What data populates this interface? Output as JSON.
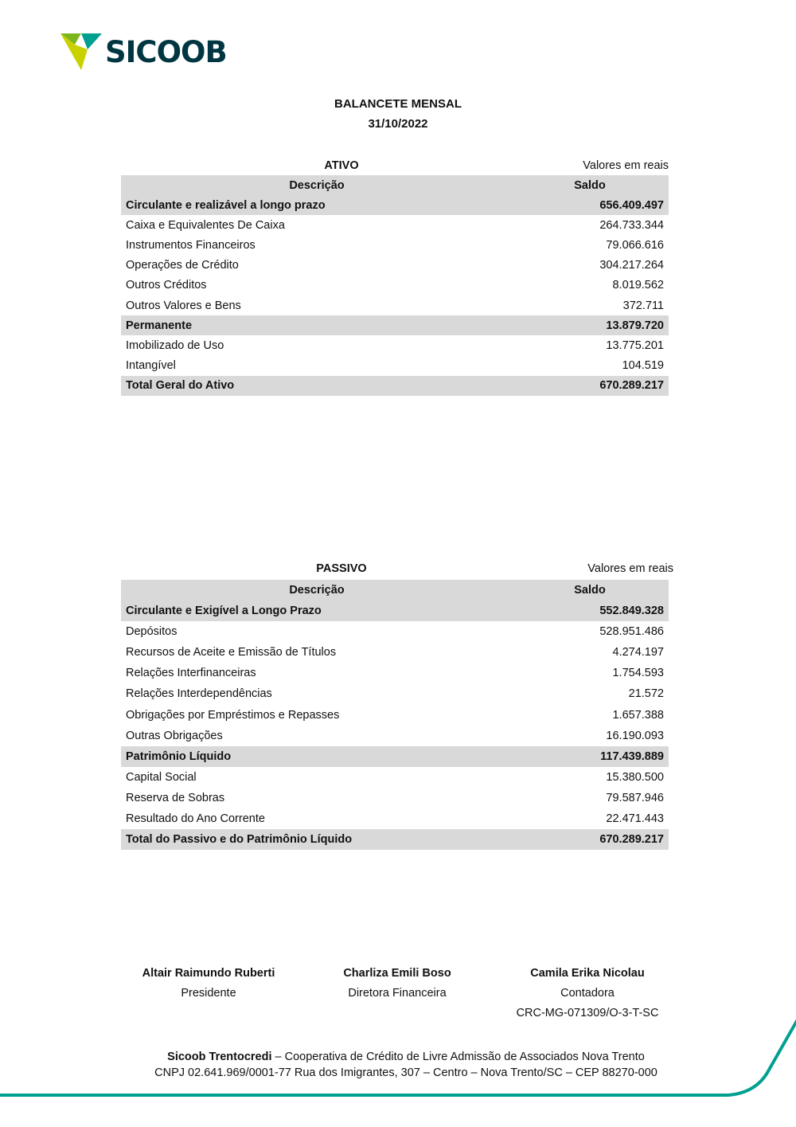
{
  "brand": {
    "name": "SICOOB",
    "colors": {
      "dark": "#003641",
      "teal": "#00a091",
      "green": "#7db61c",
      "lime": "#c9d200"
    }
  },
  "header": {
    "title": "BALANCETE MENSAL",
    "date": "31/10/2022"
  },
  "ativo": {
    "title": "ATIVO",
    "units": "Valores em reais",
    "col_desc": "Descrição",
    "col_saldo": "Saldo",
    "rows": [
      {
        "d": "Circulante e realizável a longo prazo",
        "s": "656.409.497",
        "group": true
      },
      {
        "d": "Caixa e Equivalentes De Caixa",
        "s": "264.733.344"
      },
      {
        "d": "Instrumentos Financeiros",
        "s": "79.066.616"
      },
      {
        "d": "Operações de Crédito",
        "s": "304.217.264"
      },
      {
        "d": "Outros Créditos",
        "s": "8.019.562"
      },
      {
        "d": "Outros Valores e Bens",
        "s": "372.711"
      },
      {
        "d": "Permanente",
        "s": "13.879.720",
        "group": true
      },
      {
        "d": "Imobilizado de Uso",
        "s": "13.775.201"
      },
      {
        "d": "Intangível",
        "s": "104.519"
      },
      {
        "d": "Total Geral do Ativo",
        "s": "670.289.217",
        "group": true
      }
    ]
  },
  "passivo": {
    "title": "PASSIVO",
    "units": "Valores em reais",
    "col_desc": "Descrição",
    "col_saldo": "Saldo",
    "rows": [
      {
        "d": "Circulante e Exigível a Longo Prazo",
        "s": "552.849.328",
        "group": true
      },
      {
        "d": "Depósitos",
        "s": "528.951.486"
      },
      {
        "d": "Recursos de Aceite e Emissão de Títulos",
        "s": "4.274.197"
      },
      {
        "d": "Relações Interfinanceiras",
        "s": "1.754.593"
      },
      {
        "d": "Relações Interdependências",
        "s": "21.572"
      },
      {
        "d": "Obrigações por Empréstimos e Repasses",
        "s": "1.657.388"
      },
      {
        "d": "Outras Obrigações",
        "s": "16.190.093"
      },
      {
        "d": "Patrimônio Líquido",
        "s": "117.439.889",
        "group": true
      },
      {
        "d": "Capital Social",
        "s": "15.380.500"
      },
      {
        "d": "Reserva de Sobras",
        "s": "79.587.946"
      },
      {
        "d": "Resultado do Ano Corrente",
        "s": "22.471.443"
      },
      {
        "d": "Total do Passivo e do Patrimônio Líquido",
        "s": "670.289.217",
        "group": true
      }
    ]
  },
  "signatures": [
    {
      "name": "Altair Raimundo Ruberti",
      "role": "Presidente"
    },
    {
      "name": "Charliza Emili Boso",
      "role": "Diretora Financeira"
    },
    {
      "name": "Camila Erika Nicolau",
      "role": "Contadora",
      "extra": "CRC-MG-071309/O-3-T-SC"
    }
  ],
  "footer": {
    "org": "Sicoob Trentocredi",
    "line1": " – Cooperativa de Crédito de Livre Admissão de Associados Nova Trento",
    "line2": "CNPJ 02.641.969/0001-77 Rua dos Imigrantes, 307 – Centro – Nova Trento/SC – CEP 88270-000"
  }
}
